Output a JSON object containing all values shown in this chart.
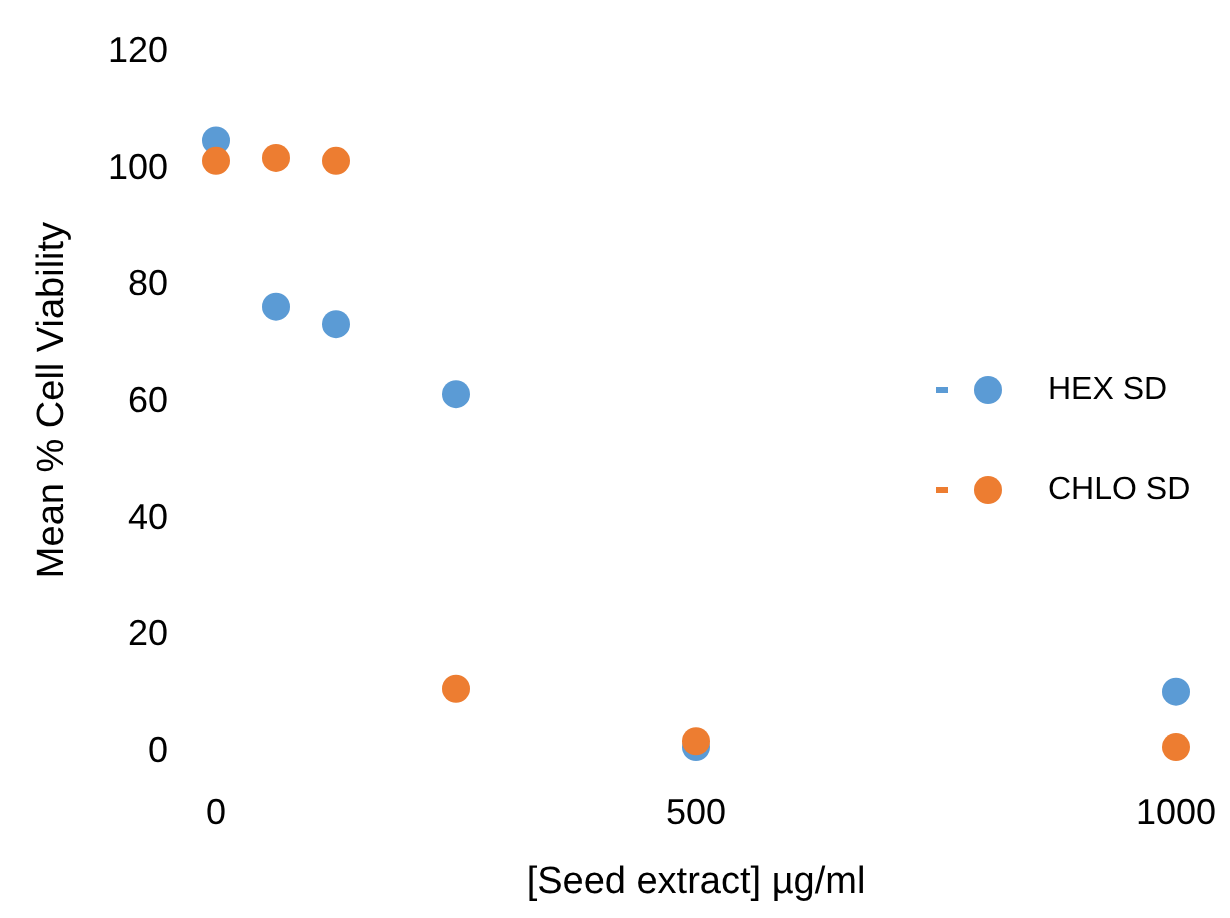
{
  "chart_data": {
    "type": "scatter",
    "xlabel": "[Seed extract] µg/ml",
    "ylabel": "Mean % Cell Viability",
    "x": [
      0,
      62.5,
      125,
      250,
      500,
      1000
    ],
    "xlim": [
      0,
      1000
    ],
    "xticks": [
      0,
      500,
      1000
    ],
    "ylim": [
      0,
      120
    ],
    "yticks": [
      0,
      20,
      40,
      60,
      80,
      100,
      120
    ],
    "grid": false,
    "legend": "right",
    "marker": "circle",
    "series": [
      {
        "name": "HEX SD",
        "color": "#5b9bd5",
        "values": [
          104.5,
          76,
          73,
          61,
          0.5,
          10
        ]
      },
      {
        "name": "CHLO SD",
        "color": "#ed7d31",
        "values": [
          101,
          101.5,
          101,
          10.5,
          1.5,
          0.5
        ]
      }
    ]
  }
}
